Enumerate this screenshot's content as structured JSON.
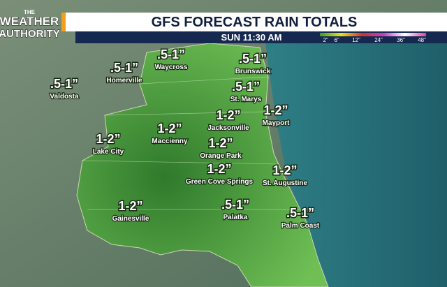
{
  "logo": {
    "line1": "THE",
    "line2": "WEATHER",
    "line3": "AUTHORITY"
  },
  "header": {
    "title": "GFS FORECAST RAIN TOTALS",
    "time": "SUN 11:30 AM"
  },
  "legend": {
    "labels": [
      "2”",
      "6”",
      "12”",
      "24”",
      "36”",
      "48”"
    ]
  },
  "cities": [
    {
      "amount": ".5-1”",
      "name": "Waycross"
    },
    {
      "amount": ".5-1”",
      "name": "Homerville"
    },
    {
      "amount": ".5-1”",
      "name": "Valdosta"
    },
    {
      "amount": ".5-1”",
      "name": "Brunswick"
    },
    {
      "amount": ".5-1”",
      "name": "St. Marys"
    },
    {
      "amount": "1-2”",
      "name": "Jacksonville"
    },
    {
      "amount": "1-2”",
      "name": "Mayport"
    },
    {
      "amount": "1-2”",
      "name": "Maccienny"
    },
    {
      "amount": "1-2”",
      "name": "Lake City"
    },
    {
      "amount": "1-2”",
      "name": "Orange Park"
    },
    {
      "amount": "1-2”",
      "name": "Green Cove Springs"
    },
    {
      "amount": "1-2”",
      "name": "St. Augustine"
    },
    {
      "amount": "1-2”",
      "name": "Gainesville"
    },
    {
      "amount": ".5-1”",
      "name": "Palatka"
    },
    {
      "amount": ".5-1”",
      "name": "Palm Coast"
    }
  ]
}
